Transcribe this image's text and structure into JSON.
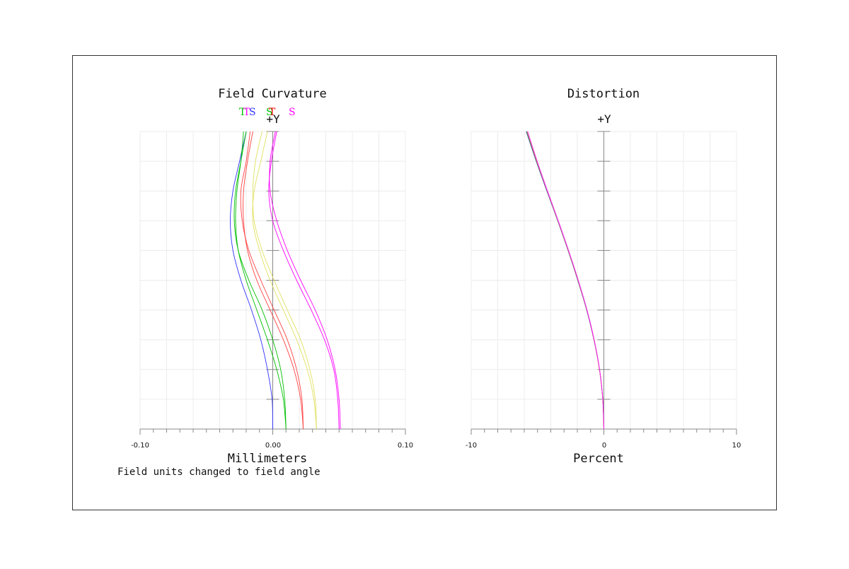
{
  "note": "Field units changed to field angle",
  "chart_data": [
    {
      "type": "line",
      "title": "Field Curvature",
      "subtitle": "+Y",
      "xlabel": "Millimeters",
      "xlim": [
        -0.1,
        0.1
      ],
      "x_tick_labels": [
        "-0.10",
        "0.00",
        "0.10"
      ],
      "legend_labels": [
        "T",
        "T",
        "S",
        "S",
        "T",
        "S"
      ],
      "legend_colors": [
        "#00c000",
        "#ff00ff",
        "#3030ff",
        "#00c000",
        "#ff0000",
        "#ff00ff"
      ],
      "grid": true,
      "series": [
        {
          "color": "#3030ff",
          "points": [
            [
              0,
              0
            ],
            [
              -0.0005,
              0.1
            ],
            [
              -0.004,
              0.2
            ],
            [
              -0.009,
              0.3
            ],
            [
              -0.016,
              0.4
            ],
            [
              -0.024,
              0.5
            ],
            [
              -0.03,
              0.6
            ],
            [
              -0.032,
              0.7
            ],
            [
              -0.03,
              0.8
            ],
            [
              -0.025,
              0.9
            ],
            [
              -0.02,
              1.0
            ]
          ]
        },
        {
          "color": "#00c000",
          "points": [
            [
              0.01,
              0
            ],
            [
              0.009,
              0.1
            ],
            [
              0.006,
              0.2
            ],
            [
              0.0,
              0.3
            ],
            [
              -0.008,
              0.4
            ],
            [
              -0.018,
              0.5
            ],
            [
              -0.026,
              0.6
            ],
            [
              -0.029,
              0.7
            ],
            [
              -0.028,
              0.8
            ],
            [
              -0.024,
              0.9
            ],
            [
              -0.02,
              1.0
            ]
          ]
        },
        {
          "color": "#00c000",
          "points": [
            [
              0.01,
              0
            ],
            [
              0.008,
              0.1
            ],
            [
              0.003,
              0.2
            ],
            [
              -0.004,
              0.3
            ],
            [
              -0.012,
              0.4
            ],
            [
              -0.02,
              0.5
            ],
            [
              -0.026,
              0.6
            ],
            [
              -0.028,
              0.7
            ],
            [
              -0.027,
              0.8
            ],
            [
              -0.024,
              0.9
            ],
            [
              -0.022,
              1.0
            ]
          ]
        },
        {
          "color": "#ff4040",
          "points": [
            [
              0.023,
              0
            ],
            [
              0.022,
              0.1
            ],
            [
              0.018,
              0.2
            ],
            [
              0.011,
              0.3
            ],
            [
              0.001,
              0.4
            ],
            [
              -0.009,
              0.5
            ],
            [
              -0.018,
              0.6
            ],
            [
              -0.023,
              0.7
            ],
            [
              -0.024,
              0.8
            ],
            [
              -0.02,
              0.9
            ],
            [
              -0.017,
              1.0
            ]
          ]
        },
        {
          "color": "#ff4040",
          "points": [
            [
              0.023,
              0
            ],
            [
              0.021,
              0.1
            ],
            [
              0.016,
              0.2
            ],
            [
              0.008,
              0.3
            ],
            [
              -0.002,
              0.4
            ],
            [
              -0.012,
              0.5
            ],
            [
              -0.019,
              0.6
            ],
            [
              -0.022,
              0.7
            ],
            [
              -0.022,
              0.8
            ],
            [
              -0.019,
              0.9
            ],
            [
              -0.015,
              1.0
            ]
          ]
        },
        {
          "color": "#e0e060",
          "points": [
            [
              0.033,
              0
            ],
            [
              0.032,
              0.1
            ],
            [
              0.028,
              0.2
            ],
            [
              0.021,
              0.3
            ],
            [
              0.011,
              0.4
            ],
            [
              0.001,
              0.5
            ],
            [
              -0.008,
              0.6
            ],
            [
              -0.014,
              0.7
            ],
            [
              -0.015,
              0.8
            ],
            [
              -0.013,
              0.9
            ],
            [
              -0.008,
              1.0
            ]
          ]
        },
        {
          "color": "#e0e060",
          "points": [
            [
              0.033,
              0
            ],
            [
              0.031,
              0.1
            ],
            [
              0.026,
              0.2
            ],
            [
              0.018,
              0.3
            ],
            [
              0.008,
              0.4
            ],
            [
              -0.002,
              0.5
            ],
            [
              -0.01,
              0.6
            ],
            [
              -0.015,
              0.7
            ],
            [
              -0.014,
              0.8
            ],
            [
              -0.009,
              0.9
            ],
            [
              -0.004,
              1.0
            ]
          ]
        },
        {
          "color": "#ff00ff",
          "points": [
            [
              0.05,
              0
            ],
            [
              0.049,
              0.1
            ],
            [
              0.046,
              0.2
            ],
            [
              0.039,
              0.3
            ],
            [
              0.029,
              0.4
            ],
            [
              0.018,
              0.5
            ],
            [
              0.008,
              0.6
            ],
            [
              0.0,
              0.7
            ],
            [
              -0.003,
              0.8
            ],
            [
              -0.001,
              0.9
            ],
            [
              0.003,
              1.0
            ]
          ]
        },
        {
          "color": "#ff00ff",
          "points": [
            [
              0.051,
              0
            ],
            [
              0.05,
              0.1
            ],
            [
              0.047,
              0.2
            ],
            [
              0.041,
              0.3
            ],
            [
              0.032,
              0.4
            ],
            [
              0.021,
              0.5
            ],
            [
              0.011,
              0.6
            ],
            [
              0.003,
              0.7
            ],
            [
              -0.002,
              0.8
            ],
            [
              -0.002,
              0.9
            ],
            [
              0.002,
              1.0
            ]
          ]
        }
      ]
    },
    {
      "type": "line",
      "title": "Distortion",
      "subtitle": "+Y",
      "xlabel": "Percent",
      "xlim": [
        -10,
        10
      ],
      "x_tick_labels": [
        "-10",
        "0",
        "10"
      ],
      "grid": true,
      "series": [
        {
          "color": "#3030ff",
          "points": [
            [
              0,
              0
            ],
            [
              -0.08,
              0.1
            ],
            [
              -0.33,
              0.2
            ],
            [
              -0.75,
              0.3
            ],
            [
              -1.3,
              0.4
            ],
            [
              -1.97,
              0.5
            ],
            [
              -2.7,
              0.6
            ],
            [
              -3.48,
              0.7
            ],
            [
              -4.3,
              0.8
            ],
            [
              -5.1,
              0.9
            ],
            [
              -5.85,
              1.0
            ]
          ]
        },
        {
          "color": "#00c000",
          "points": [
            [
              0,
              0
            ],
            [
              -0.08,
              0.1
            ],
            [
              -0.33,
              0.2
            ],
            [
              -0.74,
              0.3
            ],
            [
              -1.29,
              0.4
            ],
            [
              -1.96,
              0.5
            ],
            [
              -2.69,
              0.6
            ],
            [
              -3.47,
              0.7
            ],
            [
              -4.28,
              0.8
            ],
            [
              -5.08,
              0.9
            ],
            [
              -5.82,
              1.0
            ]
          ]
        },
        {
          "color": "#ff4040",
          "points": [
            [
              0,
              0
            ],
            [
              -0.08,
              0.1
            ],
            [
              -0.33,
              0.2
            ],
            [
              -0.74,
              0.3
            ],
            [
              -1.28,
              0.4
            ],
            [
              -1.95,
              0.5
            ],
            [
              -2.68,
              0.6
            ],
            [
              -3.46,
              0.7
            ],
            [
              -4.27,
              0.8
            ],
            [
              -5.06,
              0.9
            ],
            [
              -5.79,
              1.0
            ]
          ]
        },
        {
          "color": "#e0e060",
          "points": [
            [
              0,
              0
            ],
            [
              -0.08,
              0.1
            ],
            [
              -0.33,
              0.2
            ],
            [
              -0.73,
              0.3
            ],
            [
              -1.28,
              0.4
            ],
            [
              -1.94,
              0.5
            ],
            [
              -2.67,
              0.6
            ],
            [
              -3.45,
              0.7
            ],
            [
              -4.26,
              0.8
            ],
            [
              -5.04,
              0.9
            ],
            [
              -5.77,
              1.0
            ]
          ]
        },
        {
          "color": "#ff00ff",
          "points": [
            [
              0,
              0
            ],
            [
              -0.08,
              0.1
            ],
            [
              -0.32,
              0.2
            ],
            [
              -0.73,
              0.3
            ],
            [
              -1.27,
              0.4
            ],
            [
              -1.93,
              0.5
            ],
            [
              -2.66,
              0.6
            ],
            [
              -3.44,
              0.7
            ],
            [
              -4.25,
              0.8
            ],
            [
              -5.03,
              0.9
            ],
            [
              -5.75,
              1.0
            ]
          ]
        }
      ]
    }
  ]
}
